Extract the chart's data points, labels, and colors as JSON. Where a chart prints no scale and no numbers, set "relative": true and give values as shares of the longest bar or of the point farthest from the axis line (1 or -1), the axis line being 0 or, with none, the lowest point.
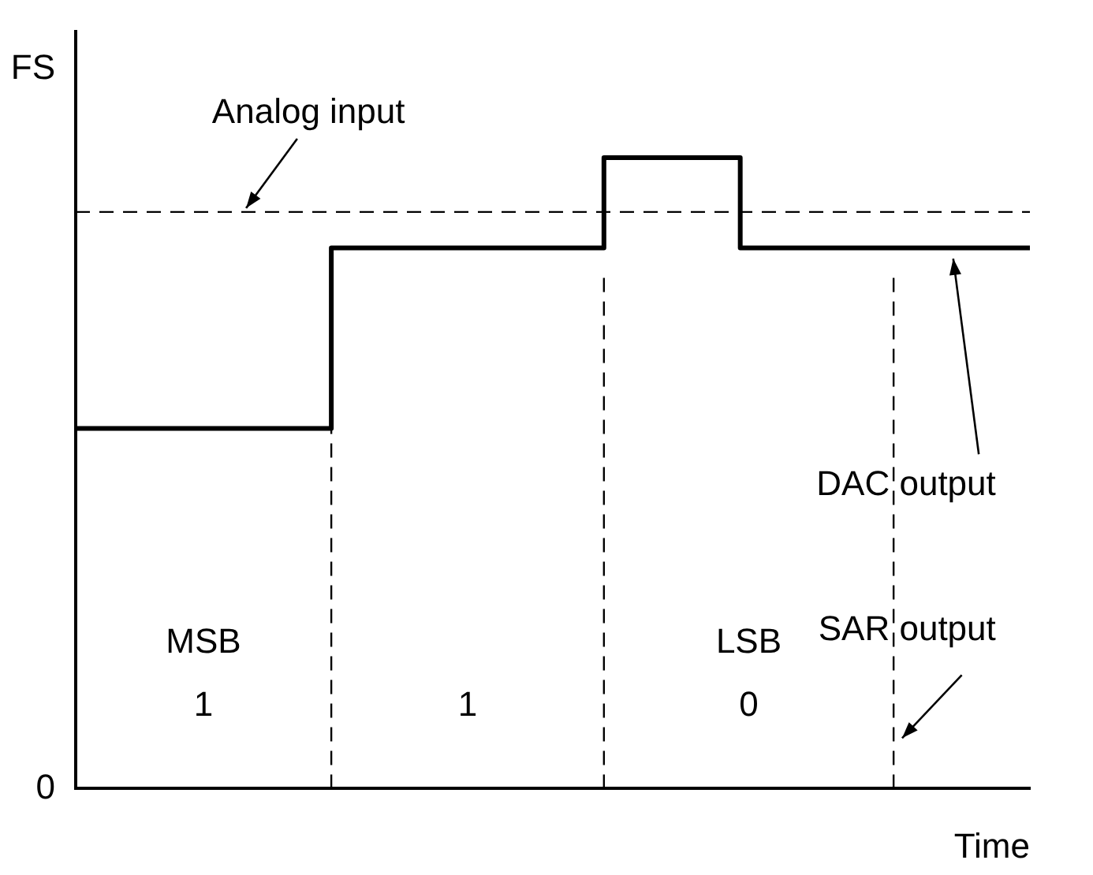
{
  "chart_data": {
    "type": "step",
    "xlabel": "Time",
    "relative": true,
    "categories": [
      null,
      null,
      null,
      null,
      null,
      null,
      null,
      null,
      null,
      null,
      null,
      null,
      null,
      null,
      null,
      null,
      null,
      null,
      null,
      null,
      null,
      null,
      null,
      null,
      null,
      null,
      null,
      null,
      null,
      null,
      null,
      null,
      null,
      null,
      null,
      null,
      null,
      null,
      null,
      null,
      null,
      null,
      null,
      null,
      null,
      null,
      null,
      null,
      null,
      null,
      null,
      null,
      null,
      null,
      null,
      null,
      null
    ],
    "series": [
      {
        "name": "Analog input",
        "color": "#000000",
        "line_style": "dashed",
        "values": [
          0.914,
          0.914,
          0.914,
          0.914,
          0.914,
          0.914,
          0.914,
          0.914,
          0.914,
          0.914,
          0.914,
          0.914,
          0.914,
          0.914,
          0.914,
          0.914,
          0.914,
          0.914,
          0.914,
          0.914,
          0.914,
          0.914,
          0.914,
          0.914,
          0.914,
          0.914,
          0.914,
          0.914,
          0.914,
          0.914,
          0.914,
          0.914,
          0.914,
          0.914,
          0.914,
          0.914,
          0.914,
          0.914,
          0.914,
          0.914,
          0.914,
          0.914,
          0.914,
          0.914,
          0.914,
          0.914,
          0.914,
          0.914,
          0.914,
          0.914,
          0.914,
          0.914,
          0.914,
          0.914,
          0.914,
          0.914,
          0.914
        ]
      },
      {
        "name": "DAC output",
        "color": "#000000",
        "line_style": "solid",
        "values": [
          0.571,
          0.571,
          0.571,
          0.571,
          0.571,
          0.571,
          0.571,
          0.571,
          0.571,
          0.571,
          0.571,
          0.571,
          0.571,
          0.571,
          0.571,
          0.857,
          0.857,
          0.857,
          0.857,
          0.857,
          0.857,
          0.857,
          0.857,
          0.857,
          0.857,
          0.857,
          0.857,
          0.857,
          0.857,
          0.857,
          0.857,
          1,
          1,
          1,
          1,
          1,
          1,
          1,
          1,
          0.857,
          0.857,
          0.857,
          0.857,
          0.857,
          0.857,
          0.857,
          0.857,
          0.857,
          0.857,
          0.857,
          0.857,
          0.857,
          0.857,
          0.857,
          0.857,
          0.857,
          0.857
        ]
      }
    ],
    "grid": false,
    "legend": false,
    "marker": "none",
    "annotations": [
      "FS",
      "0",
      "MSB",
      "1",
      "1",
      "LSB",
      "0",
      "SAR output"
    ]
  }
}
